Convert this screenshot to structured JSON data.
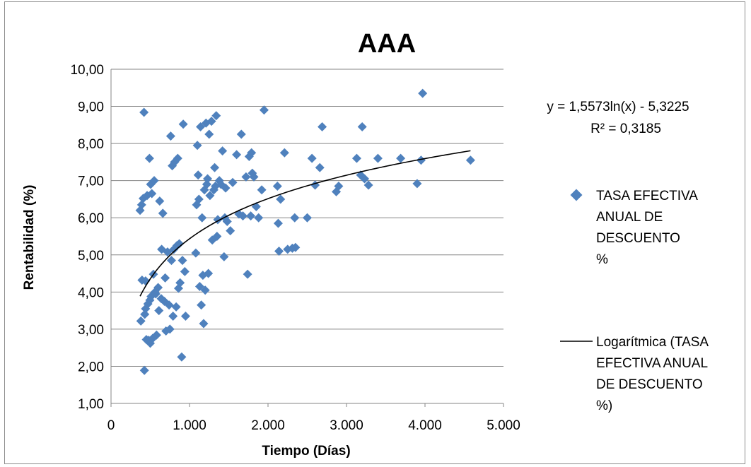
{
  "chart_data": {
    "type": "scatter",
    "title": "AAA",
    "xlabel": "Tiempo (Días)",
    "ylabel": "Rentabilidad (%)",
    "xlim": [
      0,
      5000
    ],
    "ylim": [
      1,
      10
    ],
    "x_ticks": [
      "0",
      "1.000",
      "2.000",
      "3.000",
      "4.000",
      "5.000"
    ],
    "y_ticks": [
      "1,00",
      "2,00",
      "3,00",
      "4,00",
      "5,00",
      "6,00",
      "7,00",
      "8,00",
      "9,00",
      "10,00"
    ],
    "grid": "horizontal",
    "legend_position": "right",
    "marker_color": "#4f81bd",
    "trendline_color": "#000000",
    "equation": "y = 1,5573ln(x) - 5,3225",
    "r_squared": "R² = 0,3185",
    "series": [
      {
        "name": "TASA EFECTIVA ANUAL DE DESCUENTO %",
        "legend_lines": [
          "TASA EFECTIVA",
          "ANUAL DE",
          "DESCUENTO",
          "%"
        ],
        "points": [
          [
            370,
            6.2
          ],
          [
            380,
            3.22
          ],
          [
            390,
            6.35
          ],
          [
            395,
            4.32
          ],
          [
            410,
            6.52
          ],
          [
            420,
            8.84
          ],
          [
            425,
            1.89
          ],
          [
            430,
            3.4
          ],
          [
            440,
            4.3
          ],
          [
            440,
            3.55
          ],
          [
            450,
            2.72
          ],
          [
            460,
            6.6
          ],
          [
            470,
            3.68
          ],
          [
            480,
            2.7
          ],
          [
            490,
            7.6
          ],
          [
            495,
            3.78
          ],
          [
            500,
            2.62
          ],
          [
            505,
            6.9
          ],
          [
            510,
            3.88
          ],
          [
            520,
            6.65
          ],
          [
            530,
            2.75
          ],
          [
            540,
            4.48
          ],
          [
            550,
            7.0
          ],
          [
            560,
            4.0
          ],
          [
            570,
            3.95
          ],
          [
            580,
            2.84
          ],
          [
            600,
            4.12
          ],
          [
            610,
            3.5
          ],
          [
            620,
            6.45
          ],
          [
            640,
            3.82
          ],
          [
            645,
            5.15
          ],
          [
            660,
            6.12
          ],
          [
            680,
            3.75
          ],
          [
            690,
            4.38
          ],
          [
            700,
            2.95
          ],
          [
            720,
            5.08
          ],
          [
            740,
            3.65
          ],
          [
            750,
            3.0
          ],
          [
            760,
            8.2
          ],
          [
            770,
            4.85
          ],
          [
            780,
            7.4
          ],
          [
            790,
            3.35
          ],
          [
            800,
            5.15
          ],
          [
            810,
            7.5
          ],
          [
            830,
            3.6
          ],
          [
            840,
            5.25
          ],
          [
            850,
            7.6
          ],
          [
            860,
            4.1
          ],
          [
            870,
            5.3
          ],
          [
            880,
            4.25
          ],
          [
            900,
            2.25
          ],
          [
            910,
            4.85
          ],
          [
            920,
            8.52
          ],
          [
            940,
            4.55
          ],
          [
            950,
            3.35
          ],
          [
            1080,
            5.05
          ],
          [
            1090,
            6.35
          ],
          [
            1100,
            7.95
          ],
          [
            1110,
            7.15
          ],
          [
            1120,
            6.5
          ],
          [
            1130,
            4.15
          ],
          [
            1140,
            8.45
          ],
          [
            1150,
            3.65
          ],
          [
            1160,
            6.0
          ],
          [
            1170,
            4.45
          ],
          [
            1180,
            3.15
          ],
          [
            1190,
            6.75
          ],
          [
            1200,
            4.05
          ],
          [
            1210,
            8.55
          ],
          [
            1220,
            6.9
          ],
          [
            1230,
            7.05
          ],
          [
            1240,
            4.5
          ],
          [
            1250,
            8.25
          ],
          [
            1260,
            6.6
          ],
          [
            1280,
            8.6
          ],
          [
            1290,
            5.4
          ],
          [
            1310,
            6.75
          ],
          [
            1320,
            7.35
          ],
          [
            1330,
            6.85
          ],
          [
            1340,
            8.75
          ],
          [
            1350,
            5.5
          ],
          [
            1360,
            5.95
          ],
          [
            1380,
            7.0
          ],
          [
            1400,
            6.9
          ],
          [
            1420,
            7.8
          ],
          [
            1440,
            4.95
          ],
          [
            1450,
            6.0
          ],
          [
            1460,
            6.8
          ],
          [
            1480,
            5.9
          ],
          [
            1520,
            5.65
          ],
          [
            1550,
            6.95
          ],
          [
            1600,
            7.7
          ],
          [
            1630,
            6.1
          ],
          [
            1660,
            8.25
          ],
          [
            1680,
            6.05
          ],
          [
            1720,
            7.1
          ],
          [
            1740,
            4.48
          ],
          [
            1760,
            7.65
          ],
          [
            1780,
            6.05
          ],
          [
            1790,
            7.75
          ],
          [
            1800,
            7.2
          ],
          [
            1820,
            7.1
          ],
          [
            1850,
            6.3
          ],
          [
            1880,
            6.0
          ],
          [
            1920,
            6.75
          ],
          [
            1950,
            8.9
          ],
          [
            2120,
            6.85
          ],
          [
            2130,
            5.85
          ],
          [
            2140,
            5.1
          ],
          [
            2160,
            6.5
          ],
          [
            2210,
            7.75
          ],
          [
            2250,
            5.15
          ],
          [
            2310,
            5.18
          ],
          [
            2340,
            6.0
          ],
          [
            2350,
            5.2
          ],
          [
            2500,
            6.0
          ],
          [
            2560,
            7.6
          ],
          [
            2600,
            6.88
          ],
          [
            2660,
            7.35
          ],
          [
            2690,
            8.45
          ],
          [
            2870,
            6.7
          ],
          [
            2900,
            6.85
          ],
          [
            3130,
            7.6
          ],
          [
            3180,
            7.15
          ],
          [
            3200,
            8.45
          ],
          [
            3230,
            7.05
          ],
          [
            3280,
            6.88
          ],
          [
            3400,
            7.6
          ],
          [
            3690,
            7.6
          ],
          [
            3900,
            6.92
          ],
          [
            3950,
            7.55
          ],
          [
            3970,
            9.35
          ],
          [
            4580,
            7.55
          ]
        ]
      },
      {
        "name": "Logarítmica (TASA EFECTIVA ANUAL DE DESCUENTO %)",
        "legend_lines": [
          "Logarítmica (TASA",
          "EFECTIVA ANUAL",
          "DE DESCUENTO",
          "%)"
        ],
        "trendline": {
          "type": "logarithmic",
          "a": 1.5573,
          "b": -5.3225,
          "x_from": 370,
          "x_to": 4580
        }
      }
    ]
  }
}
